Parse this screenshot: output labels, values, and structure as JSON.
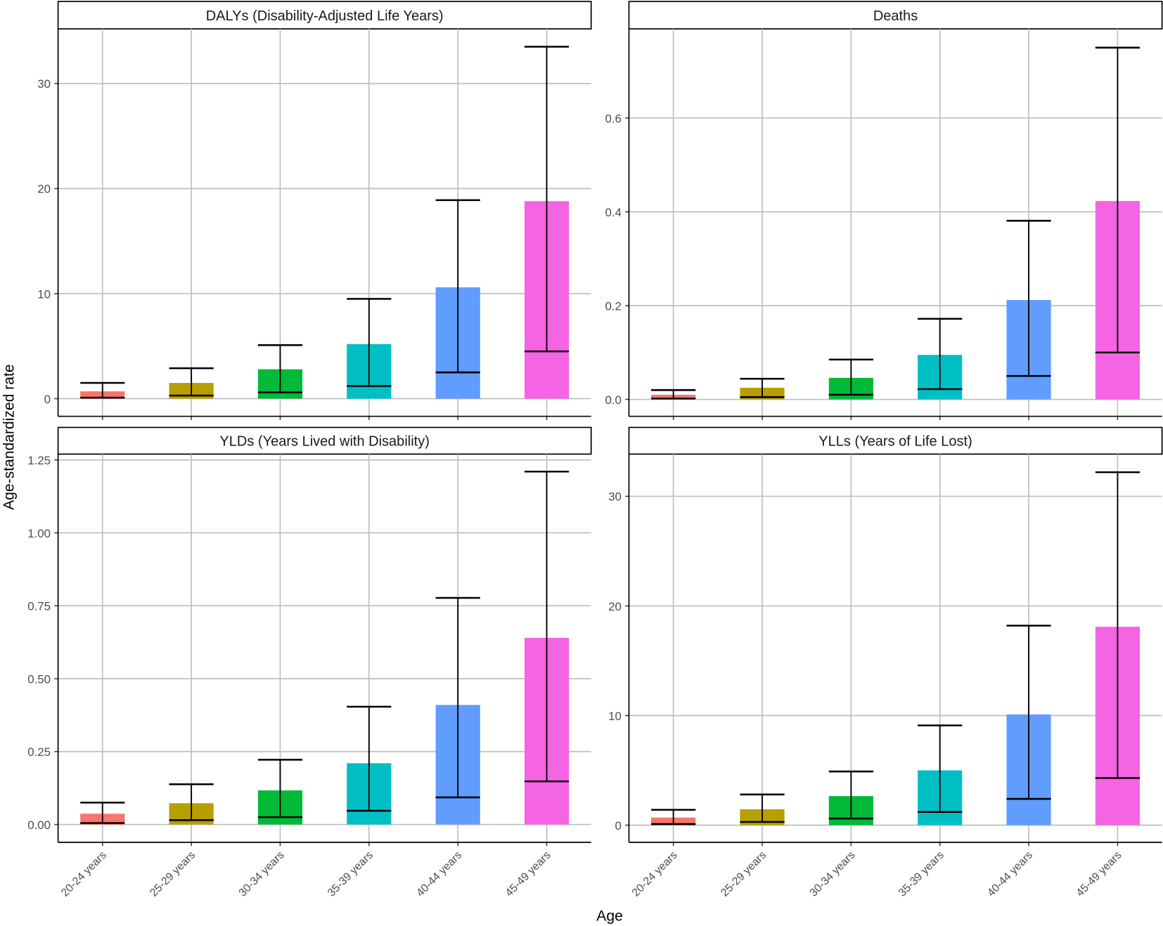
{
  "chart_data": {
    "type": "bar",
    "xlabel": "Age",
    "ylabel": "Age-standardized rate",
    "categories": [
      "20-24 years",
      "25-29 years",
      "30-34 years",
      "35-39 years",
      "40-44 years",
      "45-49 years"
    ],
    "colors": [
      "#F8766D",
      "#B79F00",
      "#00BA38",
      "#00BFC4",
      "#619CFF",
      "#F564E3"
    ],
    "grid": true,
    "legend": "none",
    "panels": [
      {
        "title": "DALYs (Disability-Adjusted Life Years)",
        "values": [
          0.7,
          1.5,
          2.8,
          5.2,
          10.6,
          18.8
        ],
        "lower": [
          0.1,
          0.3,
          0.6,
          1.2,
          2.5,
          4.5
        ],
        "upper": [
          1.5,
          2.9,
          5.1,
          9.5,
          18.9,
          33.5
        ],
        "ylim": [
          -1.68,
          35.2
        ],
        "ticks": [
          0,
          10,
          20,
          30
        ],
        "tick_labels": [
          "0",
          "10",
          "20",
          "30"
        ]
      },
      {
        "title": "Deaths",
        "values": [
          0.01,
          0.025,
          0.046,
          0.095,
          0.212,
          0.423
        ],
        "lower": [
          0.002,
          0.005,
          0.01,
          0.022,
          0.05,
          0.1
        ],
        "upper": [
          0.02,
          0.044,
          0.085,
          0.172,
          0.381,
          0.75
        ],
        "ylim": [
          -0.036,
          0.79
        ],
        "ticks": [
          0,
          0.2,
          0.4,
          0.6
        ],
        "tick_labels": [
          "0.0",
          "0.2",
          "0.4",
          "0.6"
        ]
      },
      {
        "title": "YLDs (Years Lived with Disability)",
        "values": [
          0.037,
          0.073,
          0.117,
          0.21,
          0.41,
          0.64
        ],
        "lower": [
          0.005,
          0.015,
          0.025,
          0.047,
          0.093,
          0.148
        ],
        "upper": [
          0.075,
          0.138,
          0.222,
          0.404,
          0.777,
          1.21
        ],
        "ylim": [
          -0.061,
          1.27
        ],
        "ticks": [
          0,
          0.25,
          0.5,
          0.75,
          1,
          1.25
        ],
        "tick_labels": [
          "0.00",
          "0.25",
          "0.50",
          "0.75",
          "1.00",
          "1.25"
        ]
      },
      {
        "title": "YLLs (Years of Life Lost)",
        "values": [
          0.7,
          1.45,
          2.65,
          5.0,
          10.1,
          18.1
        ],
        "lower": [
          0.1,
          0.3,
          0.6,
          1.2,
          2.4,
          4.3
        ],
        "upper": [
          1.4,
          2.8,
          4.9,
          9.1,
          18.2,
          32.2
        ],
        "ylim": [
          -1.56,
          33.85
        ],
        "ticks": [
          0,
          10,
          20,
          30
        ],
        "tick_labels": [
          "0",
          "10",
          "20",
          "30"
        ]
      }
    ]
  }
}
